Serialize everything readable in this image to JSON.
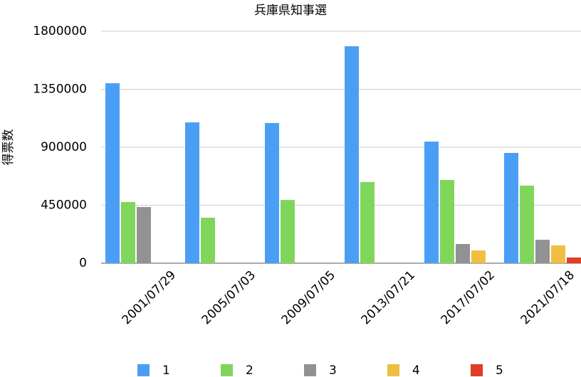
{
  "chart_data": {
    "type": "bar",
    "title": "兵庫県知事選",
    "y_label": "得票数",
    "categories": [
      "2001/07/29",
      "2005/07/03",
      "2009/07/05",
      "2013/07/21",
      "2017/07/02",
      "2021/07/18"
    ],
    "series": [
      {
        "name": "1",
        "color": "#4a9ff5",
        "values": [
          1397000,
          1093000,
          1088000,
          1684000,
          944000,
          856000
        ]
      },
      {
        "name": "2",
        "color": "#80d65a",
        "values": [
          475000,
          353000,
          491000,
          630000,
          646000,
          602000
        ]
      },
      {
        "name": "3",
        "color": "#929292",
        "values": [
          436000,
          null,
          null,
          null,
          149000,
          182000
        ]
      },
      {
        "name": "4",
        "color": "#f0be41",
        "values": [
          null,
          null,
          null,
          null,
          99000,
          138000
        ]
      },
      {
        "name": "5",
        "color": "#e03c26",
        "values": [
          null,
          null,
          null,
          null,
          null,
          44000
        ]
      }
    ],
    "ylim": [
      0,
      1800000
    ],
    "yticks": [
      0,
      450000,
      900000,
      1350000,
      1800000
    ],
    "grid": true
  }
}
